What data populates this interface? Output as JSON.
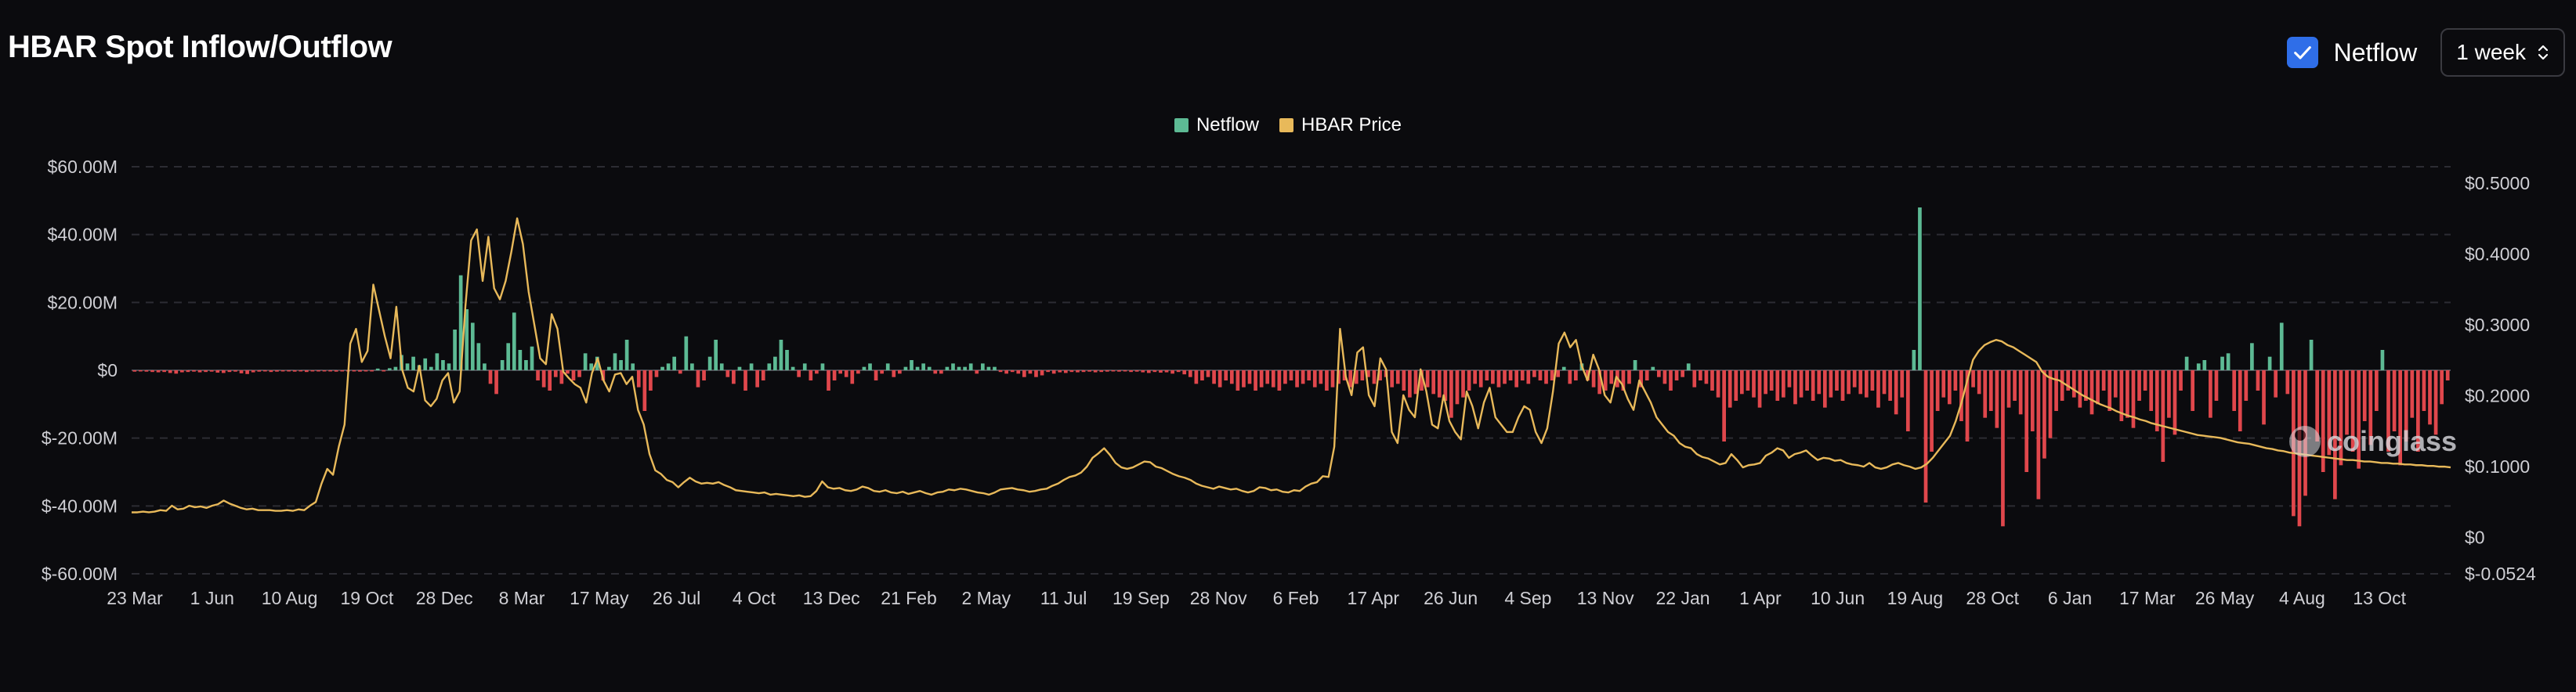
{
  "header": {
    "title": "HBAR Spot Inflow/Outflow",
    "netflow_checkbox": {
      "label": "Netflow",
      "checked": true
    },
    "period_select": {
      "value": "1 week"
    }
  },
  "watermark": "coinglass",
  "colors": {
    "positive": "#5dba94",
    "negative": "#e0474c",
    "price": "#e8b95a",
    "grid": "#2c2c33",
    "text": "#cfcfd4"
  },
  "chart_data": {
    "type": "bar",
    "title": "HBAR Spot Inflow/Outflow",
    "legend": {
      "placement": "top-center",
      "entries": [
        "Netflow",
        "HBAR Price"
      ]
    },
    "grid": true,
    "x_tick_labels": [
      "23 Mar",
      "1 Jun",
      "10 Aug",
      "19 Oct",
      "28 Dec",
      "8 Mar",
      "17 May",
      "26 Jul",
      "4 Oct",
      "13 Dec",
      "21 Feb",
      "2 May",
      "11 Jul",
      "19 Sep",
      "28 Nov",
      "6 Feb",
      "17 Apr",
      "26 Jun",
      "4 Sep",
      "13 Nov",
      "22 Jan",
      "1 Apr",
      "10 Jun",
      "19 Aug",
      "28 Oct",
      "6 Jan",
      "17 Mar",
      "26 May",
      "4 Aug",
      "13 Oct"
    ],
    "y_left": {
      "ticks": [
        "$60.00M",
        "$40.00M",
        "$20.00M",
        "$0",
        "$-20.00M",
        "$-40.00M",
        "$-60.00M"
      ],
      "range": [
        -60,
        60
      ],
      "unit": "millions USD"
    },
    "y_right": {
      "ticks": [
        "$0.5000",
        "$0.4000",
        "$0.3000",
        "$0.2000",
        "$0.1000",
        "$0",
        "$-0.0524"
      ],
      "range": [
        -0.0524,
        0.5
      ]
    },
    "series": [
      {
        "name": "Netflow",
        "type": "bar",
        "unit": "millions USD",
        "values": [
          -0.4,
          -0.3,
          -0.4,
          -0.5,
          -0.6,
          -0.5,
          -0.8,
          -1.0,
          -0.6,
          -0.5,
          -0.4,
          -0.6,
          -0.5,
          -0.4,
          -0.7,
          -0.8,
          -0.5,
          -0.4,
          -0.9,
          -1.1,
          -0.6,
          -0.4,
          -0.3,
          -0.5,
          -0.4,
          -0.3,
          -0.2,
          -0.4,
          -0.3,
          -0.5,
          -0.3,
          -0.2,
          -0.3,
          -0.2,
          -0.4,
          -0.3,
          -0.2,
          -0.3,
          -0.4,
          -0.2,
          -0.3,
          0.5,
          -0.3,
          0.6,
          1.0,
          4.5,
          2.0,
          4.0,
          1.5,
          3.5,
          1.0,
          5.0,
          3.0,
          2.0,
          12.0,
          28.0,
          18.0,
          14.0,
          8.0,
          2.0,
          -4.0,
          -7.0,
          3.0,
          8.0,
          17.0,
          6.0,
          3.0,
          7.0,
          -3.0,
          -5.0,
          -6.0,
          -2.0,
          -4.0,
          -1.0,
          -3.0,
          -2.0,
          5.0,
          2.0,
          4.0,
          -3.0,
          1.0,
          5.0,
          3.0,
          9.0,
          2.0,
          -5.0,
          -12.0,
          -6.0,
          -2.0,
          1.0,
          2.0,
          4.0,
          -1.0,
          10.0,
          2.0,
          -5.0,
          -3.0,
          4.0,
          9.0,
          2.0,
          -2.0,
          -4.0,
          1.0,
          -6.0,
          2.0,
          -5.0,
          -3.0,
          2.0,
          4.0,
          9.0,
          6.0,
          1.0,
          -2.0,
          2.0,
          -3.0,
          -1.0,
          2.0,
          -6.0,
          -3.0,
          -1.0,
          -2.0,
          -4.0,
          -1.0,
          1.0,
          2.0,
          -3.0,
          -1.0,
          2.0,
          -2.0,
          -1.0,
          1.0,
          3.0,
          1.0,
          2.0,
          1.0,
          -1.0,
          -1.0,
          1.0,
          2.0,
          1.0,
          1.0,
          2.0,
          -1.0,
          2.0,
          1.0,
          1.0,
          -0.5,
          -1.0,
          -0.5,
          -1.0,
          -2.0,
          -1.0,
          -2.0,
          -1.5,
          -0.5,
          -1.0,
          -0.6,
          -0.8,
          -0.5,
          -0.6,
          -0.5,
          -0.4,
          -0.6,
          -0.5,
          -0.4,
          -0.3,
          -0.4,
          -0.3,
          -0.5,
          -0.4,
          -0.6,
          -0.8,
          -0.5,
          -0.7,
          -0.6,
          -1.0,
          -0.5,
          -1.2,
          -2.0,
          -4.0,
          -3.0,
          -2.0,
          -4.0,
          -5.0,
          -3.0,
          -4.0,
          -6.0,
          -5.0,
          -4.0,
          -6.0,
          -5.0,
          -4.0,
          -5.0,
          -6.0,
          -4.0,
          -3.0,
          -5.0,
          -4.0,
          -3.0,
          -5.0,
          -4.0,
          -6.0,
          -5.0,
          -4.0,
          -3.0,
          -5.0,
          -4.0,
          -3.0,
          -2.0,
          -4.0,
          -3.0,
          -2.0,
          -5.0,
          -4.0,
          -6.0,
          -8.0,
          -7.0,
          -6.0,
          -5.0,
          -7.0,
          -8.0,
          -9.0,
          -14.0,
          -10.0,
          -8.0,
          -6.0,
          -4.0,
          -5.0,
          -3.0,
          -4.0,
          -5.0,
          -4.0,
          -3.0,
          -5.0,
          -3.0,
          -4.0,
          -2.0,
          -3.0,
          -4.0,
          -3.0,
          -2.0,
          1.0,
          -4.0,
          -3.0,
          2.0,
          -3.0,
          -5.0,
          -7.0,
          -6.0,
          -4.0,
          -5.0,
          -6.0,
          -4.0,
          3.0,
          -5.0,
          -3.0,
          1.0,
          -2.0,
          -4.0,
          -6.0,
          -3.0,
          -2.0,
          2.0,
          -5.0,
          -3.0,
          -4.0,
          -6.0,
          -8.0,
          -21.0,
          -11.0,
          -9.0,
          -7.0,
          -6.0,
          -8.0,
          -11.0,
          -7.0,
          -6.0,
          -9.0,
          -8.0,
          -5.0,
          -10.0,
          -8.0,
          -6.0,
          -9.0,
          -7.0,
          -11.0,
          -8.0,
          -6.0,
          -9.0,
          -7.0,
          -5.0,
          -7.0,
          -8.0,
          -6.0,
          -11.0,
          -7.0,
          -9.0,
          -13.0,
          -8.0,
          -18.0,
          6.0,
          48.0,
          -39.0,
          -24.0,
          -12.0,
          -8.0,
          -10.0,
          -6.0,
          -15.0,
          -21.0,
          -5.0,
          -7.0,
          -14.0,
          -12.0,
          -17.0,
          -46.0,
          -11.0,
          -9.0,
          -13.0,
          -30.0,
          -18.0,
          -38.0,
          -26.0,
          -20.0,
          -12.0,
          -9.0,
          -6.0,
          -8.0,
          -11.0,
          -9.0,
          -13.0,
          -10.0,
          -6.0,
          -12.0,
          -8.0,
          -15.0,
          -14.0,
          -17.0,
          -9.0,
          -6.0,
          -12.0,
          -18.0,
          -27.0,
          -14.0,
          -19.0,
          -6.0,
          4.0,
          -12.0,
          2.0,
          3.0,
          -14.0,
          -9.0,
          4.0,
          5.0,
          -12.0,
          -18.0,
          -9.0,
          8.0,
          -6.0,
          -16.0,
          4.0,
          -8.0,
          14.0,
          -7.0,
          -43.0,
          -46.0,
          -37.0,
          9.0,
          -21.0,
          -30.0,
          -25.0,
          -38.0,
          -28.0,
          -19.0,
          -24.0,
          -29.0,
          -15.0,
          -22.0,
          -12.0,
          6.0,
          -24.0,
          -18.0,
          -28.0,
          -21.0,
          -14.0,
          -24.0,
          -12.0,
          -16.0,
          -19.0,
          -10.0,
          -3.0
        ]
      },
      {
        "name": "HBAR Price",
        "type": "line",
        "axis": "right",
        "values": [
          0.031,
          0.031,
          0.032,
          0.031,
          0.032,
          0.034,
          0.033,
          0.04,
          0.035,
          0.036,
          0.04,
          0.038,
          0.039,
          0.037,
          0.04,
          0.042,
          0.047,
          0.043,
          0.04,
          0.037,
          0.035,
          0.036,
          0.034,
          0.034,
          0.034,
          0.033,
          0.033,
          0.034,
          0.033,
          0.035,
          0.034,
          0.04,
          0.045,
          0.07,
          0.09,
          0.082,
          0.12,
          0.15,
          0.26,
          0.28,
          0.235,
          0.25,
          0.34,
          0.305,
          0.27,
          0.24,
          0.31,
          0.225,
          0.2,
          0.195,
          0.23,
          0.183,
          0.175,
          0.185,
          0.21,
          0.22,
          0.18,
          0.195,
          0.31,
          0.4,
          0.415,
          0.345,
          0.405,
          0.335,
          0.32,
          0.345,
          0.385,
          0.43,
          0.395,
          0.33,
          0.285,
          0.24,
          0.232,
          0.3,
          0.28,
          0.222,
          0.213,
          0.205,
          0.2,
          0.18,
          0.22,
          0.24,
          0.21,
          0.195,
          0.218,
          0.22,
          0.205,
          0.215,
          0.17,
          0.15,
          0.11,
          0.088,
          0.083,
          0.075,
          0.072,
          0.065,
          0.072,
          0.078,
          0.073,
          0.07,
          0.071,
          0.07,
          0.072,
          0.068,
          0.065,
          0.061,
          0.06,
          0.059,
          0.058,
          0.057,
          0.058,
          0.055,
          0.056,
          0.055,
          0.054,
          0.053,
          0.054,
          0.052,
          0.053,
          0.06,
          0.073,
          0.065,
          0.063,
          0.064,
          0.061,
          0.06,
          0.062,
          0.066,
          0.064,
          0.06,
          0.059,
          0.061,
          0.058,
          0.057,
          0.059,
          0.056,
          0.058,
          0.06,
          0.057,
          0.055,
          0.058,
          0.059,
          0.062,
          0.061,
          0.063,
          0.062,
          0.06,
          0.058,
          0.057,
          0.055,
          0.058,
          0.062,
          0.063,
          0.064,
          0.062,
          0.061,
          0.059,
          0.06,
          0.062,
          0.063,
          0.067,
          0.07,
          0.075,
          0.079,
          0.081,
          0.085,
          0.093,
          0.105,
          0.111,
          0.118,
          0.109,
          0.098,
          0.092,
          0.09,
          0.092,
          0.096,
          0.1,
          0.099,
          0.093,
          0.091,
          0.087,
          0.083,
          0.08,
          0.078,
          0.075,
          0.07,
          0.067,
          0.065,
          0.063,
          0.066,
          0.064,
          0.062,
          0.063,
          0.06,
          0.058,
          0.06,
          0.065,
          0.064,
          0.061,
          0.062,
          0.059,
          0.058,
          0.061,
          0.06,
          0.066,
          0.07,
          0.072,
          0.08,
          0.079,
          0.12,
          0.28,
          0.215,
          0.19,
          0.248,
          0.255,
          0.19,
          0.175,
          0.24,
          0.225,
          0.14,
          0.125,
          0.19,
          0.17,
          0.16,
          0.225,
          0.195,
          0.15,
          0.145,
          0.19,
          0.155,
          0.14,
          0.13,
          0.195,
          0.175,
          0.145,
          0.18,
          0.2,
          0.16,
          0.15,
          0.14,
          0.14,
          0.16,
          0.175,
          0.17,
          0.14,
          0.125,
          0.145,
          0.195,
          0.26,
          0.275,
          0.255,
          0.265,
          0.23,
          0.21,
          0.245,
          0.225,
          0.19,
          0.18,
          0.215,
          0.205,
          0.185,
          0.17,
          0.21,
          0.195,
          0.18,
          0.16,
          0.15,
          0.14,
          0.135,
          0.125,
          0.12,
          0.118,
          0.11,
          0.106,
          0.104,
          0.1,
          0.096,
          0.098,
          0.11,
          0.102,
          0.092,
          0.095,
          0.096,
          0.098,
          0.108,
          0.112,
          0.118,
          0.115,
          0.105,
          0.11,
          0.112,
          0.115,
          0.108,
          0.102,
          0.105,
          0.104,
          0.101,
          0.102,
          0.098,
          0.096,
          0.095,
          0.093,
          0.098,
          0.092,
          0.09,
          0.092,
          0.096,
          0.098,
          0.095,
          0.093,
          0.09,
          0.092,
          0.097,
          0.105,
          0.115,
          0.125,
          0.135,
          0.155,
          0.18,
          0.21,
          0.238,
          0.25,
          0.258,
          0.262,
          0.265,
          0.263,
          0.258,
          0.255,
          0.25,
          0.245,
          0.24,
          0.235,
          0.222,
          0.215,
          0.212,
          0.21,
          0.205,
          0.2,
          0.195,
          0.19,
          0.186,
          0.182,
          0.178,
          0.175,
          0.172,
          0.168,
          0.165,
          0.162,
          0.16,
          0.157,
          0.155,
          0.152,
          0.15,
          0.148,
          0.146,
          0.144,
          0.142,
          0.14,
          0.138,
          0.136,
          0.135,
          0.134,
          0.133,
          0.132,
          0.13,
          0.128,
          0.126,
          0.125,
          0.124,
          0.122,
          0.12,
          0.118,
          0.117,
          0.115,
          0.114,
          0.112,
          0.111,
          0.11,
          0.109,
          0.108,
          0.107,
          0.106,
          0.105,
          0.104,
          0.103,
          0.102,
          0.102,
          0.101,
          0.1,
          0.1,
          0.099,
          0.098,
          0.098,
          0.097,
          0.097,
          0.096,
          0.096,
          0.095,
          0.095,
          0.094,
          0.094,
          0.093,
          0.093,
          0.092
        ]
      }
    ]
  }
}
